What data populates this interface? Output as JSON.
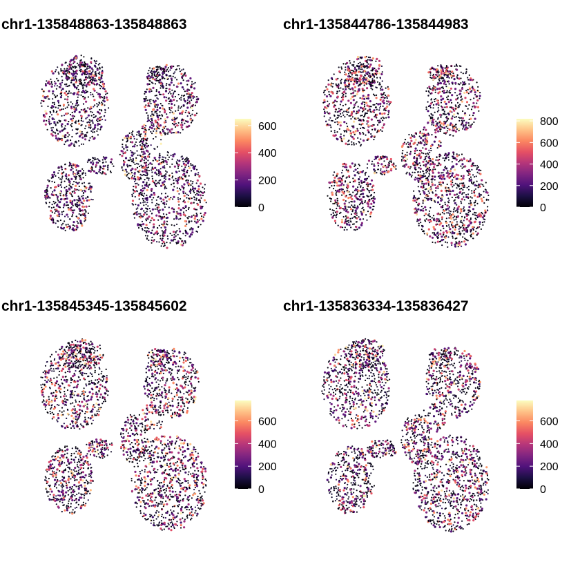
{
  "chart_data": [
    {
      "type": "scatter",
      "title": "chr1-135848863-135848863",
      "xlabel": "",
      "ylabel": "",
      "grid": false,
      "legend": "right",
      "colorbar": {
        "min": 0,
        "max": 650,
        "ticks": [
          0,
          200,
          400,
          600
        ]
      },
      "intensity": 0.3
    },
    {
      "type": "scatter",
      "title": "chr1-135844786-135844983",
      "xlabel": "",
      "ylabel": "",
      "grid": false,
      "legend": "right",
      "colorbar": {
        "min": 0,
        "max": 820,
        "ticks": [
          0,
          200,
          400,
          600,
          800
        ]
      },
      "intensity": 0.5
    },
    {
      "type": "scatter",
      "title": "chr1-135845345-135845602",
      "xlabel": "",
      "ylabel": "",
      "grid": false,
      "legend": "right",
      "colorbar": {
        "min": 0,
        "max": 780,
        "ticks": [
          0,
          200,
          400,
          600
        ]
      },
      "intensity": 0.45
    },
    {
      "type": "scatter",
      "title": "chr1-135836334-135836427",
      "xlabel": "",
      "ylabel": "",
      "grid": false,
      "legend": "right",
      "colorbar": {
        "min": 0,
        "max": 780,
        "ticks": [
          0,
          200,
          400,
          600
        ]
      },
      "intensity": 0.4
    }
  ],
  "palette": [
    "#000004",
    "#1c1044",
    "#4f127b",
    "#812581",
    "#b5367a",
    "#e55064",
    "#fb8761",
    "#fec287",
    "#fcfdbf"
  ]
}
